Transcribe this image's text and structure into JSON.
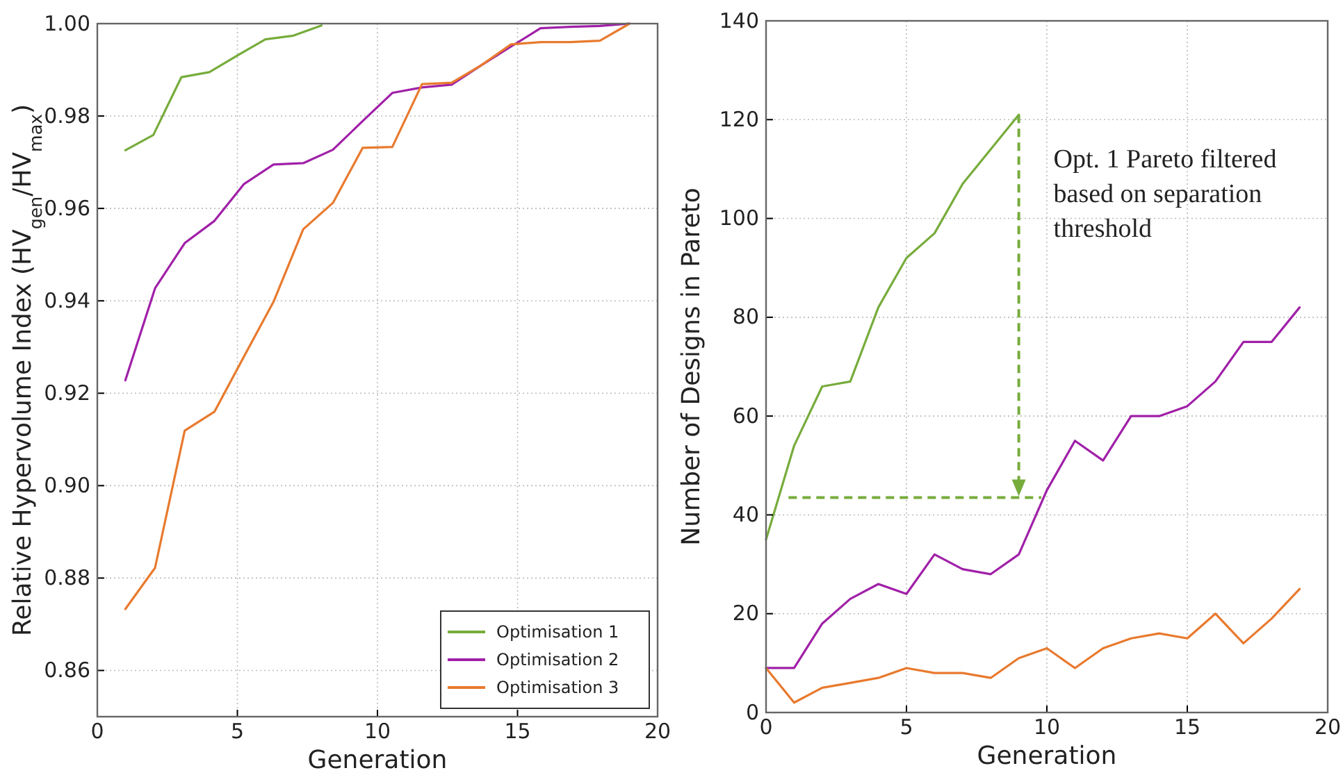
{
  "chart_data": [
    {
      "type": "line",
      "xlabel": "Generation",
      "ylabel": "Relative Hypervolume Index (HV$_{gen}$/HV$_{max}$)",
      "xlim": [
        0,
        20
      ],
      "ylim": [
        0.85,
        1.0
      ],
      "xticks": [
        0,
        5,
        10,
        15,
        20
      ],
      "yticks": [
        {
          "value": 0.86,
          "label": "0.86"
        },
        {
          "value": 0.88,
          "label": "0.88"
        },
        {
          "value": 0.9,
          "label": "0.90"
        },
        {
          "value": 0.92,
          "label": "0.92"
        },
        {
          "value": 0.94,
          "label": "0.94"
        },
        {
          "value": 0.96,
          "label": "0.96"
        },
        {
          "value": 0.98,
          "label": "0.98"
        },
        {
          "value": 1.0,
          "label": "1.00"
        }
      ],
      "grid": true,
      "legend": "bottom right",
      "line_style": "solid",
      "marker": "none",
      "series": [
        {
          "name": "Optimisation 1",
          "color": "#77ac3c",
          "x": [
            1,
            2,
            3,
            4,
            5,
            6,
            7,
            8
          ],
          "values": [
            0.9726,
            0.9759,
            0.9884,
            0.9895,
            0.9931,
            0.9966,
            0.9974,
            0.9996
          ]
        },
        {
          "name": "Optimisation 2",
          "color": "#a020a8",
          "x": [
            1,
            2.06,
            3.12,
            4.18,
            5.24,
            6.29,
            7.35,
            8.41,
            9.47,
            10.53,
            11.59,
            12.65,
            13.71,
            14.76,
            15.82,
            16.88,
            17.94,
            19
          ],
          "values": [
            0.9228,
            0.9427,
            0.9525,
            0.9573,
            0.9653,
            0.9695,
            0.9698,
            0.9727,
            0.9789,
            0.985,
            0.9862,
            0.9868,
            0.991,
            0.995,
            0.999,
            0.9993,
            0.9995,
            1.0
          ]
        },
        {
          "name": "Optimisation 3",
          "color": "#e87a2e",
          "x": [
            1,
            2.06,
            3.12,
            4.18,
            5.24,
            6.29,
            7.35,
            8.41,
            9.47,
            10.53,
            11.59,
            12.65,
            13.71,
            14.76,
            15.82,
            16.88,
            17.94,
            19
          ],
          "values": [
            0.8733,
            0.8822,
            0.9119,
            0.916,
            0.928,
            0.9398,
            0.9555,
            0.9612,
            0.9731,
            0.9733,
            0.9869,
            0.9872,
            0.991,
            0.9955,
            0.996,
            0.996,
            0.9963,
            1.0
          ]
        }
      ]
    },
    {
      "type": "line",
      "xlabel": "Generation",
      "ylabel": "Number of Designs in Pareto",
      "xlim": [
        0,
        20
      ],
      "ylim": [
        0,
        140
      ],
      "xticks": [
        0,
        5,
        10,
        15,
        20
      ],
      "yticks": [
        0,
        20,
        40,
        60,
        80,
        100,
        120,
        140
      ],
      "grid": true,
      "line_style": "solid",
      "marker": "none",
      "annotations": [
        "Opt. 1 Pareto filtered based on separation threshold"
      ],
      "ref_lines": [
        {
          "axis": "y",
          "value": 43.5,
          "color": "#77ac3c",
          "line_style": "dashed"
        }
      ],
      "series": [
        {
          "color": "#77ac3c",
          "x": [
            0,
            1,
            2,
            3,
            4,
            5,
            6,
            7,
            8,
            9
          ],
          "values": [
            35,
            54,
            66,
            67,
            82,
            92,
            97,
            107,
            114,
            121
          ]
        },
        {
          "color": "#a020a8",
          "x": [
            0,
            1,
            2,
            3,
            4,
            5,
            6,
            7,
            8,
            9,
            10,
            11,
            12,
            13,
            14,
            15,
            16,
            17,
            18,
            19
          ],
          "values": [
            9,
            9,
            18,
            23,
            26,
            24,
            32,
            29,
            28,
            32,
            45,
            55,
            51,
            60,
            60,
            62,
            67,
            75,
            75,
            82
          ]
        },
        {
          "color": "#e87a2e",
          "x": [
            0,
            1,
            2,
            3,
            4,
            5,
            6,
            7,
            8,
            9,
            10,
            11,
            12,
            13,
            14,
            15,
            16,
            17,
            18,
            19
          ],
          "values": [
            9,
            2,
            5,
            6,
            7,
            9,
            8,
            8,
            7,
            11,
            13,
            9,
            13,
            15,
            16,
            15,
            20,
            14,
            19,
            25
          ]
        }
      ]
    }
  ]
}
